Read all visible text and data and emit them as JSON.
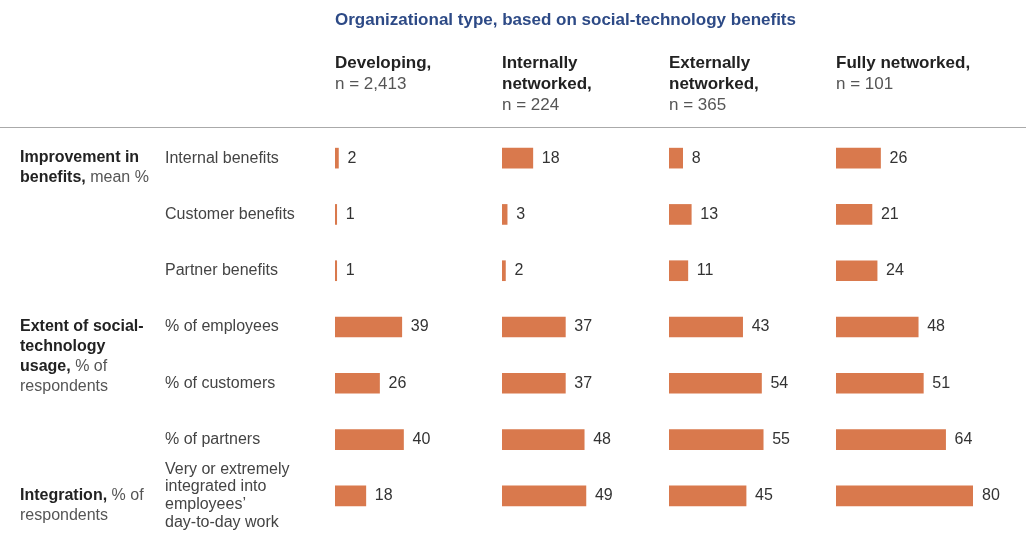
{
  "chart_data": [
    {
      "type": "other",
      "title": "Organizational type, based on social-technology benefits",
      "annotations": [
        "Improvement in benefits, mean %",
        "Extent of social-technology usage, % of respondents",
        "Integration, % of respondents"
      ]
    },
    {
      "type": "bar",
      "orientation": "horizontal",
      "title": "Developing,",
      "subtitle": "n = 2,413",
      "categories": [
        "Internal benefits",
        "Customer benefits",
        "Partner benefits",
        "% of employees",
        "% of customers",
        "% of partners",
        "Very or extremely integrated into employees’ day-to-day work"
      ],
      "values": [
        2,
        1,
        1,
        39,
        26,
        40,
        18
      ],
      "color": "#d9794d",
      "data_labels": true,
      "tick_labels": "y"
    },
    {
      "type": "bar",
      "orientation": "horizontal",
      "title": "Internally networked,",
      "subtitle": "n = 224",
      "categories": [
        null,
        null,
        null,
        null,
        null,
        null,
        null
      ],
      "values": [
        18,
        3,
        2,
        37,
        37,
        48,
        49
      ],
      "color": "#d9794d",
      "data_labels": true,
      "tick_labels": false
    },
    {
      "type": "bar",
      "orientation": "horizontal",
      "title": "Externally networked,",
      "subtitle": "n = 365",
      "categories": [
        null,
        null,
        null,
        null,
        null,
        null,
        null
      ],
      "values": [
        8,
        13,
        11,
        43,
        54,
        55,
        45
      ],
      "color": "#d9794d",
      "data_labels": true,
      "tick_labels": false
    },
    {
      "type": "bar",
      "orientation": "horizontal",
      "title": "Fully networked,",
      "subtitle": "n = 101",
      "categories": [
        null,
        null,
        null,
        null,
        null,
        null,
        null
      ],
      "values": [
        26,
        21,
        24,
        48,
        51,
        64,
        80
      ],
      "color": "#d9794d",
      "data_labels": true,
      "tick_labels": false
    }
  ]
}
